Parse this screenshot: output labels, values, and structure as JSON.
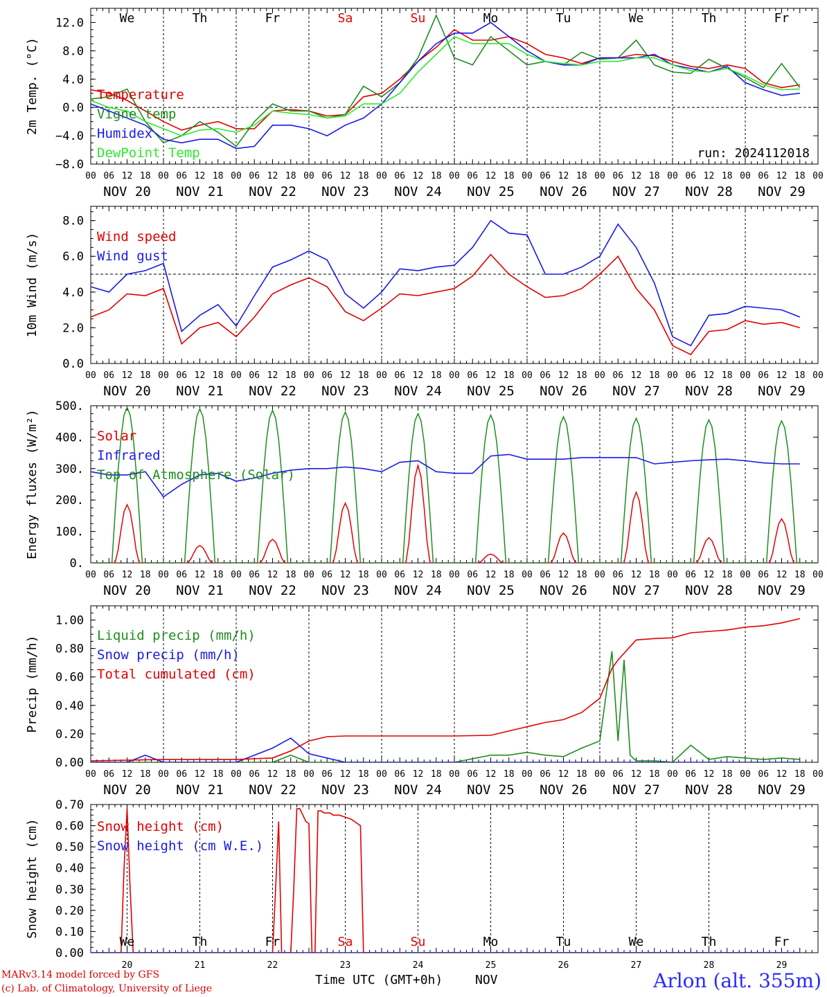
{
  "chart_data": [
    {
      "type": "line",
      "ylabel": "2m Temp. (°C)",
      "ylim": [
        -8,
        14
      ],
      "yticks": [
        -8,
        -4,
        0,
        4,
        8,
        12
      ],
      "ytick_labels": [
        "−8.0",
        "−4.0",
        "0.0",
        "4.0",
        "8.0",
        "12.0"
      ],
      "reference_line": 0,
      "day_labels": [
        "We",
        "Th",
        "Fr",
        "Sa",
        "Su",
        "Mo",
        "Tu",
        "We",
        "Th",
        "Fr"
      ],
      "annotation": "run: 2024112018",
      "legend": [
        "Temperature",
        "Vigne temp",
        "Humidex",
        "DewPoint Temp"
      ],
      "series": [
        {
          "name": "Temperature",
          "color": "#e00000",
          "x": [
            0,
            6,
            12,
            18,
            24,
            30,
            36,
            42,
            48,
            54,
            60,
            66,
            72,
            78,
            84,
            90,
            96,
            102,
            108,
            114,
            120,
            126,
            132,
            138,
            144,
            150,
            156,
            162,
            168,
            174,
            180,
            186,
            192,
            198,
            204,
            210,
            216,
            222,
            228,
            234
          ],
          "values": [
            2.5,
            2.0,
            1.0,
            -0.5,
            -2.0,
            -3.2,
            -2.5,
            -2.0,
            -3.0,
            -3.0,
            -0.5,
            -0.3,
            -0.5,
            -1.2,
            -1.0,
            1.5,
            2.0,
            4.0,
            6.5,
            8.5,
            11.0,
            9.5,
            9.5,
            10.0,
            9.0,
            7.5,
            7.0,
            6.2,
            7.0,
            7.0,
            7.5,
            7.3,
            6.5,
            5.8,
            5.5,
            6.0,
            5.5,
            3.5,
            2.8,
            3.2
          ]
        },
        {
          "name": "Vigne temp",
          "color": "#1e8c1e",
          "x": [
            0,
            6,
            12,
            18,
            24,
            30,
            36,
            42,
            48,
            54,
            60,
            66,
            72,
            78,
            84,
            90,
            96,
            102,
            108,
            114,
            120,
            126,
            132,
            138,
            144,
            150,
            156,
            162,
            168,
            174,
            180,
            186,
            192,
            198,
            204,
            210,
            216,
            222,
            228,
            234
          ],
          "values": [
            1.2,
            1.5,
            2.6,
            -2.0,
            -5.0,
            -4.0,
            -2.0,
            -3.5,
            -5.5,
            -2.0,
            0.5,
            -0.5,
            -0.5,
            -1.5,
            -1.0,
            3.0,
            1.5,
            3.5,
            7.0,
            13.0,
            7.0,
            6.0,
            10.0,
            8.0,
            6.0,
            6.5,
            6.0,
            7.8,
            6.8,
            7.0,
            9.5,
            6.0,
            5.0,
            4.8,
            6.8,
            5.5,
            4.2,
            2.8,
            6.2,
            2.8
          ]
        },
        {
          "name": "Humidex",
          "color": "#1a1ae6",
          "x": [
            0,
            6,
            12,
            18,
            24,
            30,
            36,
            42,
            48,
            54,
            60,
            66,
            72,
            78,
            84,
            90,
            96,
            102,
            108,
            114,
            120,
            126,
            132,
            138,
            144,
            150,
            156,
            162,
            168,
            174,
            180,
            186,
            192,
            198,
            204,
            210,
            216,
            222,
            228,
            234
          ],
          "values": [
            0.5,
            -0.5,
            -1.5,
            -2.5,
            -4.5,
            -5.0,
            -4.5,
            -4.5,
            -5.8,
            -5.5,
            -2.5,
            -2.5,
            -3.0,
            -4.0,
            -2.5,
            -1.5,
            0.5,
            3.5,
            6.5,
            9.0,
            10.5,
            10.5,
            12.0,
            10.0,
            8.0,
            6.5,
            6.0,
            6.0,
            7.0,
            7.0,
            7.0,
            7.5,
            6.0,
            5.5,
            5.0,
            5.8,
            3.5,
            2.5,
            1.7,
            2.0
          ]
        },
        {
          "name": "DewPoint Temp",
          "color": "#2ee82e",
          "x": [
            0,
            6,
            12,
            18,
            24,
            30,
            36,
            42,
            48,
            54,
            60,
            66,
            72,
            78,
            84,
            90,
            96,
            102,
            108,
            114,
            120,
            126,
            132,
            138,
            144,
            150,
            156,
            162,
            168,
            174,
            180,
            186,
            192,
            198,
            204,
            210,
            216,
            222,
            228,
            234
          ],
          "values": [
            1.0,
            0.0,
            -0.5,
            -2.0,
            -3.0,
            -4.0,
            -3.2,
            -3.0,
            -3.5,
            -2.5,
            -0.5,
            -0.8,
            -1.0,
            -1.5,
            -1.2,
            0.5,
            0.5,
            2.0,
            5.0,
            7.5,
            10.0,
            9.0,
            9.0,
            9.0,
            7.5,
            6.5,
            6.2,
            6.0,
            6.5,
            6.5,
            7.0,
            7.0,
            6.0,
            5.2,
            5.0,
            5.5,
            4.5,
            3.2,
            2.5,
            2.6
          ]
        }
      ]
    },
    {
      "type": "line",
      "ylabel": "10m Wind (m/s)",
      "ylim": [
        0,
        8.8
      ],
      "yticks": [
        0,
        2,
        4,
        6,
        8
      ],
      "ytick_labels": [
        "0.0",
        "2.0",
        "4.0",
        "6.0",
        "8.0"
      ],
      "reference_line": 5,
      "legend": [
        "Wind speed",
        "Wind gust"
      ],
      "series": [
        {
          "name": "Wind speed",
          "color": "#e00000",
          "x": [
            0,
            6,
            12,
            18,
            24,
            30,
            36,
            42,
            48,
            54,
            60,
            66,
            72,
            78,
            84,
            90,
            96,
            102,
            108,
            114,
            120,
            126,
            132,
            138,
            144,
            150,
            156,
            162,
            168,
            174,
            180,
            186,
            192,
            198,
            204,
            210,
            216,
            222,
            228,
            234
          ],
          "values": [
            2.6,
            3.0,
            3.9,
            3.8,
            4.2,
            1.1,
            2.0,
            2.3,
            1.5,
            2.6,
            3.9,
            4.4,
            4.8,
            4.3,
            2.9,
            2.4,
            3.1,
            3.9,
            3.8,
            4.0,
            4.2,
            4.9,
            6.1,
            5.0,
            4.3,
            3.7,
            3.8,
            4.2,
            5.0,
            6.0,
            4.2,
            3.0,
            1.0,
            0.5,
            1.8,
            1.9,
            2.4,
            2.2,
            2.3,
            2.0
          ]
        },
        {
          "name": "Wind gust",
          "color": "#1a1ae6",
          "x": [
            0,
            6,
            12,
            18,
            24,
            30,
            36,
            42,
            48,
            54,
            60,
            66,
            72,
            78,
            84,
            90,
            96,
            102,
            108,
            114,
            120,
            126,
            132,
            138,
            144,
            150,
            156,
            162,
            168,
            174,
            180,
            186,
            192,
            198,
            204,
            210,
            216,
            222,
            228,
            234
          ],
          "values": [
            4.3,
            4.0,
            5.0,
            5.2,
            5.6,
            1.8,
            2.7,
            3.3,
            2.1,
            3.8,
            5.4,
            5.8,
            6.3,
            5.8,
            3.9,
            3.1,
            4.0,
            5.3,
            5.2,
            5.4,
            5.5,
            6.5,
            8.0,
            7.3,
            7.2,
            5.0,
            5.0,
            5.4,
            6.0,
            7.8,
            6.5,
            4.5,
            1.5,
            1.0,
            2.7,
            2.8,
            3.2,
            3.1,
            3.0,
            2.6
          ]
        }
      ]
    },
    {
      "type": "line",
      "ylabel": "Energy fluxes (W/m²)",
      "ylim": [
        0,
        500
      ],
      "yticks": [
        0,
        100,
        200,
        300,
        400,
        500
      ],
      "ytick_labels": [
        "0.",
        "100.",
        "200.",
        "300.",
        "400.",
        "500."
      ],
      "legend": [
        "Solar",
        "Infrared",
        "Top of Atmosphere (Solar)"
      ],
      "daily_peak_hour": 12,
      "daily_peaks": {
        "Solar": [
          185,
          55,
          75,
          190,
          310,
          28,
          95,
          225,
          80,
          140
        ],
        "Top of Atmosphere (Solar)": [
          495,
          490,
          485,
          480,
          475,
          470,
          465,
          460,
          455,
          452
        ]
      },
      "series": [
        {
          "name": "Infrared",
          "color": "#1a1ae6",
          "x": [
            0,
            6,
            12,
            18,
            24,
            30,
            36,
            42,
            48,
            54,
            60,
            66,
            72,
            78,
            84,
            90,
            96,
            102,
            108,
            114,
            120,
            126,
            132,
            138,
            144,
            150,
            156,
            162,
            168,
            174,
            180,
            186,
            192,
            198,
            204,
            210,
            216,
            222,
            228,
            234
          ],
          "values": [
            290,
            280,
            280,
            290,
            210,
            250,
            280,
            285,
            260,
            270,
            285,
            295,
            300,
            300,
            305,
            300,
            290,
            320,
            325,
            290,
            285,
            285,
            340,
            345,
            330,
            330,
            330,
            335,
            335,
            335,
            335,
            315,
            320,
            325,
            328,
            330,
            325,
            318,
            315,
            315
          ]
        }
      ],
      "series_colors": {
        "Solar": "#e00000",
        "Top of Atmosphere (Solar)": "#1e8c1e"
      }
    },
    {
      "type": "line",
      "ylabel": "Precip (mm/h)",
      "ylim": [
        0,
        1.1
      ],
      "yticks": [
        0,
        0.2,
        0.4,
        0.6,
        0.8,
        1.0
      ],
      "ytick_labels": [
        "0.00",
        "0.20",
        "0.40",
        "0.60",
        "0.80",
        "1.00"
      ],
      "legend": [
        "Liquid precip (mm/h)",
        "Snow precip (mm/h)",
        "Total cumulated (cm)"
      ],
      "series": [
        {
          "name": "Liquid precip (mm/h)",
          "color": "#1e8c1e",
          "x": [
            0,
            12,
            24,
            36,
            48,
            60,
            66,
            72,
            84,
            96,
            108,
            120,
            132,
            138,
            144,
            150,
            156,
            162,
            168,
            172,
            174,
            176,
            178,
            180,
            186,
            192,
            198,
            204,
            210,
            216,
            222,
            228,
            234
          ],
          "values": [
            0,
            0,
            0,
            0,
            0,
            0,
            0.05,
            0,
            0,
            0,
            0,
            0,
            0.05,
            0.05,
            0.07,
            0.05,
            0.04,
            0.1,
            0.15,
            0.78,
            0.15,
            0.72,
            0.05,
            0.01,
            0.01,
            0,
            0.12,
            0.02,
            0.04,
            0.03,
            0.02,
            0.03,
            0.02
          ]
        },
        {
          "name": "Snow precip (mm/h)",
          "color": "#1a1ae6",
          "x": [
            0,
            12,
            18,
            24,
            36,
            48,
            60,
            66,
            72,
            84,
            96,
            108,
            120,
            132,
            144,
            156,
            168,
            180,
            192,
            204,
            216,
            228,
            234
          ],
          "values": [
            0,
            0,
            0.05,
            0,
            0,
            0,
            0.1,
            0.17,
            0.06,
            0,
            0,
            0,
            0,
            0,
            0,
            0,
            0,
            0,
            0,
            0,
            0,
            0,
            0
          ]
        },
        {
          "name": "Total cumulated (cm)",
          "color": "#e00000",
          "x": [
            0,
            12,
            24,
            48,
            60,
            66,
            72,
            78,
            84,
            96,
            108,
            120,
            132,
            144,
            150,
            156,
            162,
            168,
            172,
            174,
            180,
            186,
            192,
            198,
            204,
            210,
            216,
            222,
            228,
            234
          ],
          "values": [
            0.01,
            0.015,
            0.02,
            0.02,
            0.03,
            0.08,
            0.15,
            0.18,
            0.185,
            0.185,
            0.185,
            0.185,
            0.19,
            0.25,
            0.28,
            0.3,
            0.35,
            0.45,
            0.66,
            0.72,
            0.86,
            0.87,
            0.875,
            0.91,
            0.92,
            0.93,
            0.95,
            0.96,
            0.98,
            1.01
          ]
        }
      ]
    },
    {
      "type": "line",
      "ylabel": "Snow height (cm)",
      "ylim": [
        0,
        0.7
      ],
      "yticks": [
        0,
        0.1,
        0.2,
        0.3,
        0.4,
        0.5,
        0.6,
        0.7
      ],
      "ytick_labels": [
        "0.00",
        "0.10",
        "0.20",
        "0.30",
        "0.40",
        "0.50",
        "0.60",
        "0.70"
      ],
      "legend": [
        "Snow height (cm)",
        "Snow height (cm W.E.)"
      ],
      "day_labels": [
        "We",
        "Th",
        "Fr",
        "Sa",
        "Su",
        "Mo",
        "Tu",
        "We",
        "Th",
        "Fr"
      ],
      "date_labels": [
        "20",
        "21",
        "22",
        "23",
        "24",
        "25",
        "26",
        "27",
        "28",
        "29"
      ],
      "series": [
        {
          "name": "Snow height (cm)",
          "color": "#e00000",
          "x": [
            0,
            10,
            11,
            12,
            13,
            14,
            60,
            61,
            62,
            63,
            64,
            65,
            66,
            67,
            68,
            69,
            70,
            71,
            72,
            73,
            74,
            75,
            76,
            77,
            78,
            79,
            80,
            81,
            82,
            84,
            86,
            88,
            89,
            90,
            234
          ],
          "values": [
            0,
            0,
            0.4,
            0.68,
            0.3,
            0,
            0,
            0.3,
            0.62,
            0,
            0,
            0,
            0,
            0.3,
            0.68,
            0.68,
            0.65,
            0.62,
            0.61,
            0.0,
            0.0,
            0.67,
            0.67,
            0.66,
            0.66,
            0.66,
            0.65,
            0.65,
            0.65,
            0.64,
            0.63,
            0.61,
            0.6,
            0,
            0
          ]
        },
        {
          "name": "Snow height (cm W.E.)",
          "color": "#1a1ae6",
          "x": [
            0,
            234
          ],
          "values": [
            0,
            0
          ]
        }
      ]
    }
  ],
  "x_axis": {
    "hour_tick_labels": [
      "00",
      "06",
      "12",
      "18"
    ],
    "final_hour_label": "00",
    "date_labels": [
      "NOV 20",
      "NOV 21",
      "NOV 22",
      "NOV 23",
      "NOV 24",
      "NOV 25",
      "NOV 26",
      "NOV 27",
      "NOV 28",
      "NOV 29"
    ],
    "weekend_day_color": "#e00000"
  },
  "footer": {
    "credit_line1": "MARv3.14 model forced by GFS",
    "credit_line2": "(c) Lab. of Climatology, University of Liege",
    "x_title": "Time UTC (GMT+0h)",
    "month_label": "NOV",
    "station": "Arlon (alt. 355m)"
  }
}
